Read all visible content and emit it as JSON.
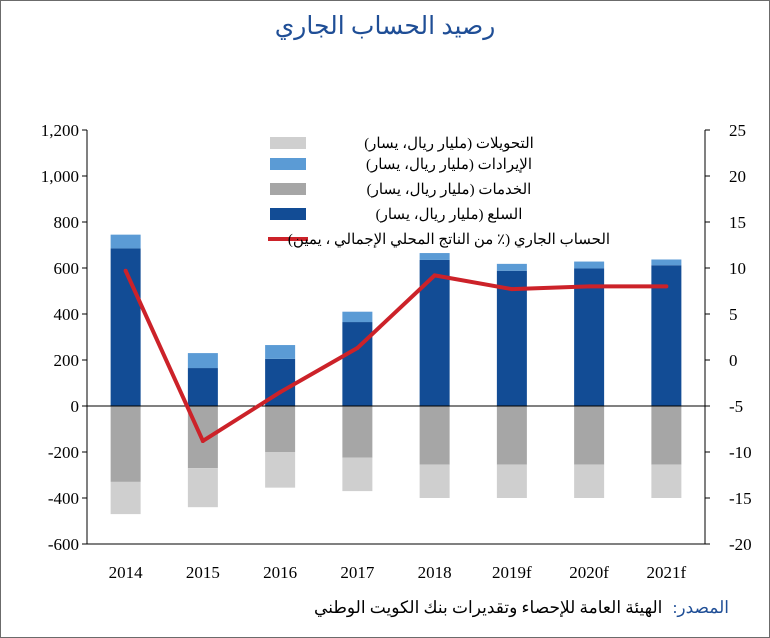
{
  "title": "رصيد الحساب الجاري",
  "source": {
    "label": "المصدر:",
    "text": "الهيئة العامة للإحصاء وتقديرات بنك الكويت الوطني"
  },
  "colors": {
    "goods": "#124c95",
    "services": "#a6a6a6",
    "income": "#5b9bd5",
    "transfers": "#cfcfcf",
    "current_account": "#cc2229"
  },
  "chart_data": {
    "type": "bar",
    "categories": [
      "2014",
      "2015",
      "2016",
      "2017",
      "2018",
      "2019f",
      "2020f",
      "2021f"
    ],
    "series": [
      {
        "name": "التحويلات (مليار ريال، يسار)",
        "values": [
          -140,
          -170,
          -155,
          -145,
          -145,
          -145,
          -145,
          -145
        ]
      },
      {
        "name": "الإيرادات (مليار ريال، يسار)",
        "values": [
          60,
          65,
          60,
          45,
          30,
          30,
          30,
          25
        ]
      },
      {
        "name": "الخدمات (مليار ريال، يسار)",
        "values": [
          -330,
          -270,
          -200,
          -225,
          -255,
          -255,
          -255,
          -255
        ]
      },
      {
        "name": "السلع (مليار ريال، يسار)",
        "values": [
          685,
          165,
          205,
          365,
          635,
          588,
          598,
          612
        ]
      },
      {
        "name": "الحساب الجاري (٪ من الناتج المحلي الإجمالي ، يمين)",
        "type": "line",
        "axis": "right",
        "values": [
          9.7,
          -8.8,
          -3.5,
          1.3,
          9.2,
          7.7,
          8.0,
          8.0
        ]
      }
    ],
    "ylim_left": [
      -600,
      1200
    ],
    "ylim_right": [
      -20,
      25
    ],
    "yticks_left": [
      "1,200",
      "1,000",
      "800",
      "600",
      "400",
      "200",
      "0",
      "-200",
      "-400",
      "-600"
    ],
    "yticks_right": [
      "25",
      "20",
      "15",
      "10",
      "5",
      "0",
      "-5",
      "-10",
      "-15",
      "-20"
    ],
    "legend_position": "top-center",
    "grid": false
  }
}
